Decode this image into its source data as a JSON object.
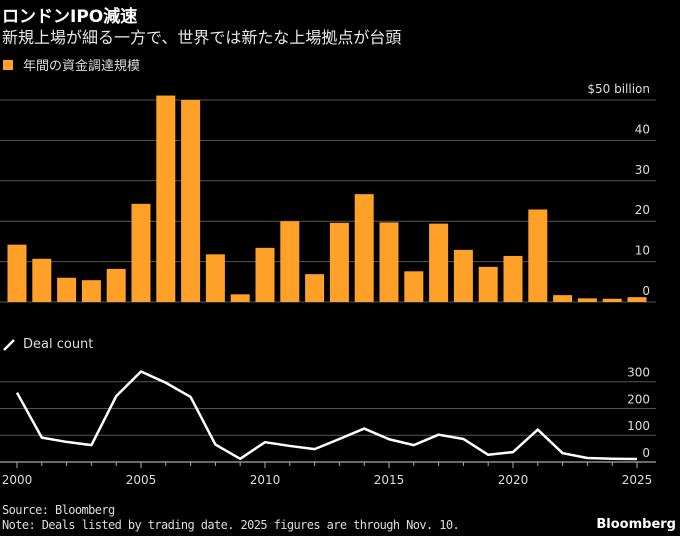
{
  "header": {
    "title": "ロンドンIPO減速",
    "subtitle": "新規上場が細る一方で、世界では新たな上場拠点が台頭"
  },
  "footer": {
    "source": "Source: Bloomberg",
    "note": "Note: Deals listed by trading date. 2025 figures are through Nov. 10.",
    "brand": "Bloomberg"
  },
  "chart_data": [
    {
      "type": "bar",
      "legend": "年間の資金調達規模",
      "color": "#ffa028",
      "categories": [
        2000,
        2001,
        2002,
        2003,
        2004,
        2005,
        2006,
        2007,
        2008,
        2009,
        2010,
        2011,
        2012,
        2013,
        2014,
        2015,
        2016,
        2017,
        2018,
        2019,
        2020,
        2021,
        2022,
        2023,
        2024,
        2025
      ],
      "values": [
        14.2,
        10.7,
        6.0,
        5.4,
        8.2,
        24.3,
        51.1,
        50.0,
        11.8,
        1.9,
        13.4,
        20.0,
        6.9,
        19.6,
        26.7,
        19.7,
        7.6,
        19.4,
        12.9,
        8.7,
        11.4,
        22.9,
        1.7,
        0.9,
        0.8,
        1.2
      ],
      "ylim": [
        0,
        50
      ],
      "yticks": [
        0,
        10,
        20,
        30,
        40,
        50
      ],
      "ytick_labels": [
        "0",
        "10",
        "20",
        "30",
        "40",
        "$50 billion"
      ],
      "grid": true
    },
    {
      "type": "line",
      "legend": "Deal count",
      "color": "#ffffff",
      "x": [
        2000,
        2001,
        2002,
        2003,
        2004,
        2005,
        2006,
        2007,
        2008,
        2009,
        2010,
        2011,
        2012,
        2013,
        2014,
        2015,
        2016,
        2017,
        2018,
        2019,
        2020,
        2021,
        2022,
        2023,
        2024,
        2025
      ],
      "values": [
        259,
        91,
        75,
        63,
        246,
        338,
        296,
        243,
        65,
        12,
        74,
        60,
        48,
        86,
        125,
        85,
        63,
        102,
        86,
        27,
        37,
        121,
        33,
        15,
        12,
        11
      ],
      "ylim": [
        0,
        300
      ],
      "yticks": [
        0,
        100,
        200,
        300
      ],
      "ytick_labels": [
        "0",
        "100",
        "200",
        "300"
      ],
      "xtick_labels": [
        "2000",
        "2005",
        "2010",
        "2015",
        "2020",
        "2025"
      ],
      "grid": true
    }
  ]
}
